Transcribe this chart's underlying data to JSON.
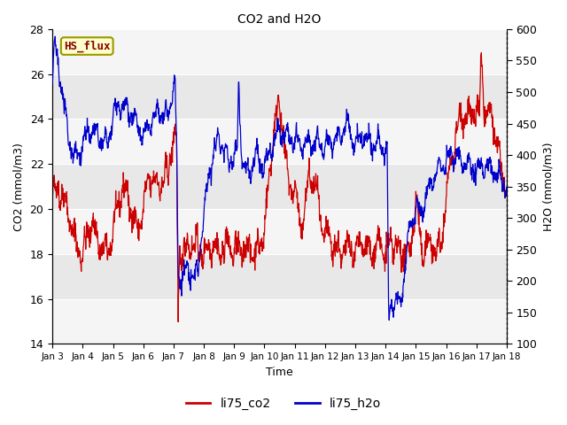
{
  "title": "CO2 and H2O",
  "xlabel": "Time",
  "ylabel_left": "CO2 (mmol/m3)",
  "ylabel_right": "H2O (mmol/m3)",
  "ylim_left": [
    14,
    28
  ],
  "ylim_right": [
    100,
    600
  ],
  "xtick_labels": [
    "Jan 3",
    "Jan 4",
    "Jan 5",
    "Jan 6",
    "Jan 7",
    "Jan 8",
    "Jan 9",
    "Jan 10",
    "Jan 11",
    "Jan 12",
    "Jan 13",
    "Jan 14",
    "Jan 15",
    "Jan 16",
    "Jan 17",
    "Jan 18"
  ],
  "color_co2": "#cc0000",
  "color_h2o": "#0000cc",
  "bg_color": "#e8e8e8",
  "band_color": "#f5f5f5",
  "legend_label_co2": "li75_co2",
  "legend_label_h2o": "li75_h2o",
  "text_box_label": "HS_flux",
  "text_box_bg": "#ffffcc",
  "text_box_border": "#999900",
  "text_box_text_color": "#880000",
  "yticks_left": [
    14,
    16,
    18,
    20,
    22,
    24,
    26,
    28
  ],
  "yticks_right": [
    100,
    150,
    200,
    250,
    300,
    350,
    400,
    450,
    500,
    550,
    600
  ]
}
